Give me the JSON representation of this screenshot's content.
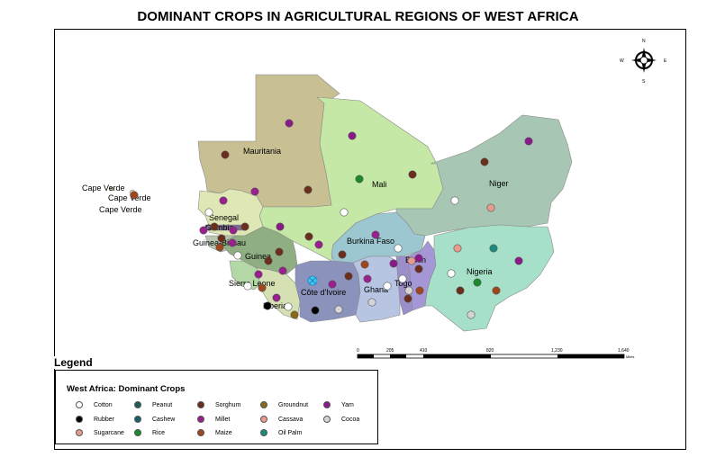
{
  "title": "DOMINANT CROPS IN AGRICULTURAL REGIONS OF WEST AFRICA",
  "compass": {
    "n": "N",
    "s": "S",
    "e": "E",
    "w": "W"
  },
  "scale": {
    "ticks": [
      "0",
      "205",
      "410",
      "820",
      "1,230",
      "1,640"
    ],
    "unit": "Miles"
  },
  "countries": {
    "mauritania": "Mauritania",
    "mali": "Mali",
    "niger": "Niger",
    "senegal": "Senegal",
    "gambia": "Gambia",
    "guinea_bissau": "Guinea-Bissau",
    "guinea": "Guinea",
    "sierra_leone": "Sierra Leone",
    "liberia": "Liberia",
    "cote_divoire": "Côte d'Ivoire",
    "burkina_faso": "Burkina Faso",
    "ghana": "Ghana",
    "togo": "Togo",
    "benin": "Benin",
    "nigeria": "Nigeria",
    "cape_verde_1": "Cape Verde",
    "cape_verde_2": "Cape Verde",
    "cape_verde_3": "Cape Verde"
  },
  "country_colors": {
    "mauritania": "#c8bf93",
    "mali": "#c5e8a6",
    "niger": "#a7c7b4",
    "senegal": "#dfe8b4",
    "gambia": "#7a6a8a",
    "guinea_bissau": "#b9c5b0",
    "guinea": "#8fae82",
    "sierra_leone": "#b4d7a6",
    "liberia": "#d6e1b3",
    "cote_divoire": "#8b93bd",
    "burkina_faso": "#9cc7d0",
    "ghana": "#b7c4e2",
    "togo": "#9c8fc9",
    "benin": "#a596d6",
    "nigeria": "#a6e0c9"
  },
  "legend": {
    "title": "Legend",
    "heading": "West Africa: Dominant Crops",
    "items": [
      {
        "label": "Cotton",
        "color": "#ffffff"
      },
      {
        "label": "Peanut",
        "color": "#1a5f52"
      },
      {
        "label": "Sorghum",
        "color": "#6b2e1d"
      },
      {
        "label": "Groundnut",
        "color": "#8a6a1a"
      },
      {
        "label": "Yam",
        "color": "#8a1a8a"
      },
      {
        "label": "Rubber",
        "color": "#000000"
      },
      {
        "label": "Cashew",
        "color": "#1a5f6e"
      },
      {
        "label": "Millet",
        "color": "#9a1f8f"
      },
      {
        "label": "Cassava",
        "color": "#e89a8e"
      },
      {
        "label": "Cocoa",
        "color": "#d5d5d5"
      },
      {
        "label": "Sugarcane",
        "color": "#e89a8e"
      },
      {
        "label": "Rice",
        "color": "#1a8a2a"
      },
      {
        "label": "Maize",
        "color": "#a0461e"
      },
      {
        "label": "Oil Palm",
        "color": "#1a8a7a"
      }
    ]
  }
}
